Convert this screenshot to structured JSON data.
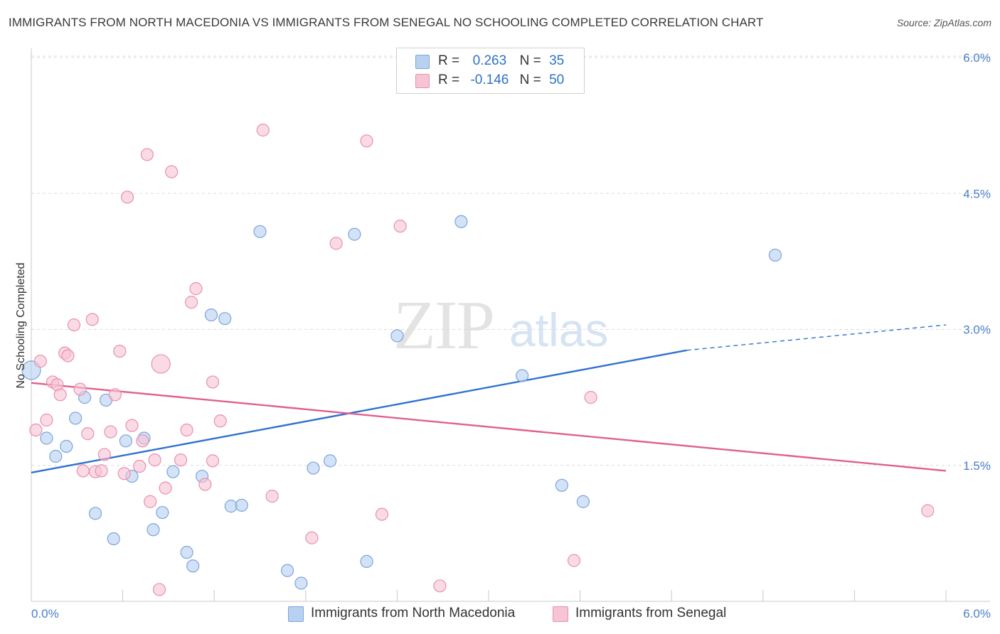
{
  "title": "IMMIGRANTS FROM NORTH MACEDONIA VS IMMIGRANTS FROM SENEGAL NO SCHOOLING COMPLETED CORRELATION CHART",
  "source": "Source: ZipAtlas.com",
  "watermark": {
    "zip": "ZIP",
    "atlas": "atlas"
  },
  "legend": {
    "rows": [
      {
        "r_label": "R =",
        "r_value": "0.263",
        "n_label": "N =",
        "n_value": "35"
      },
      {
        "r_label": "R =",
        "r_value": "-0.146",
        "n_label": "N =",
        "n_value": "50"
      }
    ]
  },
  "bottom_legend": {
    "blue": "Immigrants from North Macedonia",
    "pink": "Immigrants from Senegal"
  },
  "colors": {
    "blue_fill": "#b8d1f0",
    "blue_stroke": "#7aa6dc",
    "blue_line": "#2f72d0",
    "pink_fill": "#f7c4d4",
    "pink_stroke": "#e891ad",
    "pink_line": "#e0608f",
    "grid": "#dcdcdc",
    "tick_text": "#4a7fc8"
  },
  "chart_data": {
    "type": "scatter",
    "title": "IMMIGRANTS FROM NORTH MACEDONIA VS IMMIGRANTS FROM SENEGAL NO SCHOOLING COMPLETED CORRELATION CHART",
    "xlabel": "",
    "ylabel": "No Schooling Completed",
    "xlim": [
      0,
      6.0
    ],
    "ylim": [
      0,
      6.0
    ],
    "x_tick_labels": [
      "0.0%",
      "6.0%"
    ],
    "y_tick_values": [
      1.5,
      3.0,
      4.5,
      6.0
    ],
    "y_tick_labels": [
      "1.5%",
      "3.0%",
      "4.5%",
      "6.0%"
    ],
    "grid": true,
    "series": [
      {
        "name": "Immigrants from North Macedonia",
        "r": 0.263,
        "n": 35,
        "points": [
          [
            0.0,
            2.55
          ],
          [
            0.1,
            1.8
          ],
          [
            0.16,
            1.6
          ],
          [
            0.23,
            1.71
          ],
          [
            0.29,
            2.02
          ],
          [
            0.35,
            2.25
          ],
          [
            0.42,
            0.97
          ],
          [
            0.49,
            2.22
          ],
          [
            0.54,
            0.69
          ],
          [
            0.62,
            1.77
          ],
          [
            0.66,
            1.38
          ],
          [
            0.74,
            1.8
          ],
          [
            0.8,
            0.79
          ],
          [
            0.86,
            0.98
          ],
          [
            0.93,
            1.43
          ],
          [
            1.02,
            0.54
          ],
          [
            1.06,
            0.39
          ],
          [
            1.12,
            1.38
          ],
          [
            1.18,
            3.16
          ],
          [
            1.27,
            3.12
          ],
          [
            1.31,
            1.05
          ],
          [
            1.38,
            1.06
          ],
          [
            1.5,
            4.08
          ],
          [
            1.68,
            0.34
          ],
          [
            1.77,
            0.2
          ],
          [
            1.85,
            1.47
          ],
          [
            1.96,
            1.55
          ],
          [
            2.12,
            4.05
          ],
          [
            2.2,
            0.44
          ],
          [
            2.4,
            2.93
          ],
          [
            2.82,
            4.19
          ],
          [
            3.22,
            2.49
          ],
          [
            3.48,
            1.28
          ],
          [
            3.62,
            1.1
          ],
          [
            4.88,
            3.82
          ]
        ],
        "trend": {
          "x": [
            0.0,
            4.3
          ],
          "y": [
            1.42,
            2.77
          ],
          "dashed_to": [
            6.0,
            3.05
          ]
        }
      },
      {
        "name": "Immigrants from Senegal",
        "r": -0.146,
        "n": 50,
        "points": [
          [
            0.03,
            1.89
          ],
          [
            0.06,
            2.65
          ],
          [
            0.1,
            2.0
          ],
          [
            0.14,
            2.42
          ],
          [
            0.17,
            2.39
          ],
          [
            0.19,
            2.28
          ],
          [
            0.22,
            2.74
          ],
          [
            0.24,
            2.71
          ],
          [
            0.28,
            3.05
          ],
          [
            0.32,
            2.34
          ],
          [
            0.34,
            1.44
          ],
          [
            0.37,
            1.85
          ],
          [
            0.4,
            3.11
          ],
          [
            0.42,
            1.43
          ],
          [
            0.46,
            1.44
          ],
          [
            0.48,
            1.62
          ],
          [
            0.52,
            1.87
          ],
          [
            0.55,
            2.28
          ],
          [
            0.58,
            2.76
          ],
          [
            0.61,
            1.41
          ],
          [
            0.63,
            4.46
          ],
          [
            0.66,
            1.94
          ],
          [
            0.71,
            1.49
          ],
          [
            0.73,
            1.77
          ],
          [
            0.76,
            4.93
          ],
          [
            0.78,
            1.1
          ],
          [
            0.81,
            1.56
          ],
          [
            0.84,
            0.13
          ],
          [
            0.88,
            1.25
          ],
          [
            0.92,
            4.74
          ],
          [
            0.98,
            1.56
          ],
          [
            1.02,
            1.89
          ],
          [
            1.05,
            3.3
          ],
          [
            1.08,
            3.45
          ],
          [
            1.14,
            1.29
          ],
          [
            1.19,
            2.42
          ],
          [
            1.19,
            1.55
          ],
          [
            1.24,
            1.99
          ],
          [
            1.52,
            5.2
          ],
          [
            1.58,
            1.16
          ],
          [
            1.84,
            0.7
          ],
          [
            2.0,
            3.95
          ],
          [
            2.2,
            5.08
          ],
          [
            2.3,
            0.96
          ],
          [
            2.42,
            4.14
          ],
          [
            2.68,
            0.17
          ],
          [
            3.56,
            0.45
          ],
          [
            3.67,
            2.25
          ],
          [
            5.88,
            1.0
          ],
          [
            0.85,
            2.62
          ]
        ],
        "trend": {
          "x": [
            0.0,
            6.0
          ],
          "y": [
            2.41,
            1.44
          ]
        }
      }
    ]
  }
}
